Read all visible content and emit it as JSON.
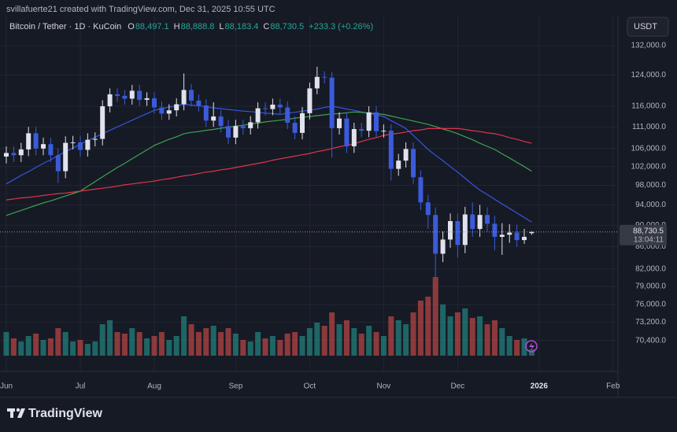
{
  "header": {
    "credit": "svillafuerte21 created with TradingView.com, Dec 31, 2025 10:55 UTC",
    "symbol": "Bitcoin / Tether · 1D · KuCoin",
    "ohlc": [
      {
        "key": "O",
        "value": "88,497.1"
      },
      {
        "key": "H",
        "value": "88,888.8"
      },
      {
        "key": "L",
        "value": "88,183.4"
      },
      {
        "key": "C",
        "value": "88,730.5"
      }
    ],
    "change": "+233.3 (+0.26%)",
    "currency": "USDT",
    "brand": "TradingView",
    "last_price_label": "88,730.5",
    "countdown": "13:04:11"
  },
  "chart_data": {
    "type": "candlestick",
    "log_scale": true,
    "grid": true,
    "up_color": "#e0e3eb",
    "down_color": "#3b5bdb",
    "volume_up_color": "#26a69a",
    "volume_down_color": "#ef5350",
    "categories": [
      "Jun",
      null,
      null,
      null,
      null,
      null,
      null,
      null,
      null,
      null,
      "Jul",
      null,
      null,
      null,
      null,
      null,
      null,
      null,
      null,
      null,
      "Aug",
      null,
      null,
      null,
      null,
      null,
      null,
      null,
      null,
      null,
      null,
      "Sep",
      null,
      null,
      null,
      null,
      null,
      null,
      null,
      null,
      null,
      "Oct",
      null,
      null,
      null,
      null,
      null,
      null,
      null,
      null,
      null,
      "Nov",
      null,
      null,
      null,
      null,
      null,
      null,
      null,
      null,
      null,
      "Dec",
      null,
      null,
      null,
      null,
      null,
      null,
      null,
      null,
      null,
      null,
      "2026",
      null,
      null,
      null,
      null,
      null,
      null,
      null,
      null,
      null,
      "Feb"
    ],
    "open": [
      104200,
      105000,
      104500,
      105800,
      109500,
      106000,
      107000,
      104500,
      101000,
      107300,
      107400,
      105700,
      108000,
      108200,
      116000,
      119000,
      118600,
      117900,
      119900,
      117600,
      118000,
      115700,
      114200,
      115000,
      116500,
      120100,
      117400,
      116200,
      112500,
      113500,
      111200,
      108500,
      111200,
      110700,
      112100,
      115500,
      115300,
      116400,
      115700,
      112000,
      109600,
      114300,
      120500,
      123500,
      123300,
      110700,
      113000,
      106500,
      110500,
      110100,
      114500,
      110000,
      110100,
      101500,
      103300,
      105900,
      99700,
      94500,
      92000,
      84700,
      87300,
      90800,
      86300,
      92100,
      89300,
      92000,
      90300,
      87800,
      88200,
      88600,
      87200,
      88497.1,
      null,
      null,
      null,
      null,
      null,
      null,
      null,
      null,
      null,
      null,
      null
    ],
    "high": [
      106500,
      106500,
      107300,
      111000,
      111000,
      108500,
      108500,
      106000,
      108800,
      108900,
      108900,
      109500,
      109700,
      117500,
      120500,
      120500,
      120100,
      121400,
      121400,
      119500,
      119500,
      117200,
      116500,
      118000,
      124400,
      121600,
      118900,
      117700,
      117000,
      115000,
      112700,
      112700,
      112700,
      113600,
      117000,
      117000,
      117900,
      117900,
      117200,
      113500,
      115800,
      122000,
      126200,
      125000,
      124800,
      114500,
      114500,
      112000,
      112000,
      116000,
      116000,
      111600,
      111600,
      104800,
      107400,
      107400,
      101200,
      96000,
      93500,
      88800,
      92300,
      92300,
      93600,
      94500,
      94000,
      93500,
      91800,
      90400,
      90200,
      90100,
      89300,
      88888.8,
      null,
      null,
      null,
      null,
      null,
      null,
      null,
      null,
      null,
      null,
      null
    ],
    "low": [
      102700,
      103000,
      103000,
      104300,
      104500,
      104500,
      103000,
      98500,
      99500,
      105800,
      104200,
      104200,
      106500,
      106700,
      114500,
      117100,
      116400,
      116400,
      116100,
      116100,
      114200,
      112700,
      112700,
      113500,
      115000,
      115900,
      114700,
      111000,
      111000,
      109700,
      107000,
      107000,
      109200,
      109200,
      110600,
      113800,
      113800,
      114200,
      110500,
      108100,
      108100,
      112800,
      119000,
      121800,
      104000,
      109200,
      105000,
      105000,
      108600,
      108600,
      108500,
      108500,
      99000,
      100000,
      101800,
      98200,
      93000,
      89300,
      80600,
      83200,
      85800,
      84000,
      84800,
      87800,
      87800,
      88800,
      85300,
      84500,
      86700,
      86000,
      86500,
      88183.4,
      null,
      null,
      null,
      null,
      null,
      null,
      null,
      null,
      null,
      null,
      null
    ],
    "close": [
      105000,
      104500,
      105800,
      109500,
      106000,
      107000,
      104500,
      101000,
      107300,
      107400,
      105700,
      108000,
      108200,
      116000,
      119000,
      118600,
      117900,
      119900,
      117600,
      118000,
      115700,
      114200,
      115000,
      116500,
      120100,
      117400,
      116200,
      112500,
      113500,
      111200,
      108500,
      111200,
      110700,
      112100,
      115500,
      115300,
      116400,
      115700,
      112000,
      109600,
      114300,
      120500,
      123500,
      123300,
      110700,
      113000,
      106500,
      110500,
      110100,
      114500,
      110000,
      110100,
      101500,
      103300,
      105900,
      99700,
      94500,
      92000,
      84700,
      87300,
      90800,
      86300,
      92100,
      89300,
      92000,
      90300,
      87800,
      88200,
      88600,
      87200,
      87800,
      88730.5,
      null,
      null,
      null,
      null,
      null,
      null,
      null,
      null,
      null,
      null,
      null
    ],
    "volume": [
      30,
      22,
      18,
      25,
      28,
      20,
      22,
      35,
      30,
      18,
      20,
      15,
      18,
      40,
      45,
      30,
      28,
      35,
      30,
      22,
      25,
      30,
      20,
      25,
      50,
      40,
      30,
      35,
      38,
      30,
      35,
      28,
      20,
      18,
      30,
      22,
      25,
      20,
      28,
      30,
      25,
      35,
      42,
      38,
      55,
      40,
      45,
      35,
      28,
      38,
      30,
      25,
      50,
      45,
      40,
      55,
      70,
      75,
      100,
      65,
      50,
      55,
      60,
      48,
      50,
      40,
      45,
      35,
      25,
      20,
      22,
      8,
      null,
      null,
      null,
      null,
      null,
      null,
      null,
      null,
      null,
      null,
      null
    ],
    "moving_averages": [
      {
        "color": "#3656e0",
        "values": [
          98300,
          99200,
          100100,
          100900,
          101800,
          102700,
          103500,
          104400,
          105300,
          106100,
          107000,
          107800,
          108600,
          109400,
          110200,
          111000,
          111800,
          112600,
          113400,
          114200,
          115000,
          115400,
          115800,
          116100,
          116500,
          116300,
          116100,
          115900,
          115600,
          115400,
          115200,
          115000,
          114800,
          114700,
          114500,
          114300,
          114200,
          114000,
          114300,
          114500,
          114800,
          115000,
          115300,
          115700,
          116000,
          115700,
          115300,
          115000,
          114600,
          114300,
          113900,
          113500,
          112500,
          111600,
          110600,
          109000,
          107400,
          105800,
          104500,
          103300,
          102000,
          100800,
          99500,
          98200,
          97000,
          96100,
          95100,
          94200,
          93300,
          92400,
          91500,
          90600,
          null,
          null,
          null,
          null,
          null,
          null,
          null,
          null,
          null,
          null,
          null
        ]
      },
      {
        "color": "#3fa34d",
        "values": [
          91900,
          92400,
          92900,
          93400,
          93900,
          94400,
          94800,
          95300,
          95800,
          96300,
          96800,
          97800,
          98800,
          99800,
          100800,
          101800,
          102700,
          103700,
          104700,
          105700,
          106700,
          107400,
          108100,
          108700,
          109400,
          109700,
          109900,
          110200,
          110400,
          110700,
          110900,
          111200,
          111400,
          111700,
          111900,
          112200,
          112400,
          112600,
          112800,
          113100,
          113300,
          113500,
          113700,
          113900,
          114100,
          114200,
          114400,
          114600,
          114500,
          114300,
          114200,
          114000,
          113600,
          113200,
          112800,
          112400,
          112000,
          111600,
          111100,
          110500,
          110000,
          109400,
          108700,
          108000,
          107200,
          106500,
          105800,
          104800,
          103900,
          102900,
          102000,
          101000,
          null,
          null,
          null,
          null,
          null,
          null,
          null,
          null,
          null,
          null,
          null
        ]
      },
      {
        "color": "#e0344a",
        "values": [
          95000,
          95200,
          95400,
          95500,
          95700,
          95900,
          96100,
          96300,
          96400,
          96600,
          96800,
          97000,
          97200,
          97400,
          97600,
          97800,
          98100,
          98300,
          98500,
          98700,
          98900,
          99200,
          99400,
          99700,
          100000,
          100200,
          100500,
          100800,
          101000,
          101300,
          101500,
          101800,
          102100,
          102400,
          102700,
          103000,
          103400,
          103700,
          104000,
          104300,
          104600,
          104900,
          105300,
          105600,
          106000,
          106400,
          106700,
          107100,
          107600,
          108100,
          108500,
          109000,
          109300,
          109500,
          109800,
          110100,
          110300,
          110600,
          110600,
          110600,
          110600,
          110600,
          110400,
          110100,
          109900,
          109600,
          109400,
          109000,
          108500,
          108100,
          107600,
          107200,
          null,
          null,
          null,
          null,
          null,
          null,
          null,
          null,
          null,
          null,
          null
        ]
      }
    ],
    "ylim": [
      68150,
      140700
    ],
    "yticks": [
      {
        "value": 132000,
        "label": "132,000.0"
      },
      {
        "value": 124000,
        "label": "124,000.0"
      },
      {
        "value": 116000,
        "label": "116,000.0"
      },
      {
        "value": 111000,
        "label": "111,000.0"
      },
      {
        "value": 106000,
        "label": "106,000.0"
      },
      {
        "value": 102000,
        "label": "102,000.0"
      },
      {
        "value": 98000,
        "label": "98,000.0"
      },
      {
        "value": 94000,
        "label": "94,000.0"
      },
      {
        "value": 90000,
        "label": "90,000.0"
      },
      {
        "value": 86000,
        "label": "86,000.0"
      },
      {
        "value": 82000,
        "label": "82,000.0"
      },
      {
        "value": 79000,
        "label": "79,000.0"
      },
      {
        "value": 76000,
        "label": "76,000.0"
      },
      {
        "value": 73200,
        "label": "73,200.0"
      },
      {
        "value": 70400,
        "label": "70,400.0"
      }
    ]
  }
}
